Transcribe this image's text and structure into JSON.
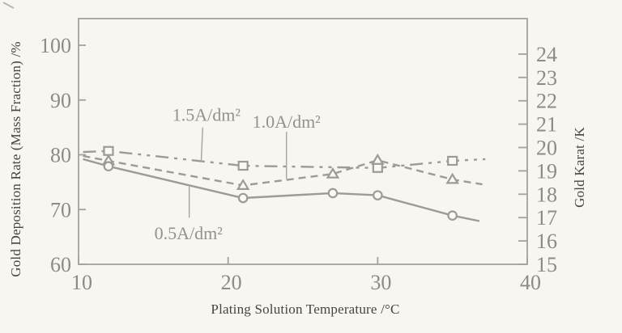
{
  "figure": {
    "xlabel": "Plating Solution Temperature /°C",
    "ylabel_left": "Gold Deposition Rate (Mass Fraction) /%",
    "ylabel_right": "Gold Karat /K"
  },
  "chart_data": {
    "type": "line",
    "title": "",
    "xlabel": "Plating Solution Temperature /°C",
    "ylabel_left": "Gold Deposition Rate (Mass Fraction) /%",
    "ylabel_right": "Gold Karat /K",
    "grid": false,
    "legend": "inline-labels-with-leader-lines",
    "x_axis": {
      "min": 10,
      "max": 40,
      "ticks": [
        10,
        20,
        30,
        40
      ]
    },
    "y_axis_left": {
      "min": 60,
      "max": 100,
      "ticks": [
        60,
        70,
        80,
        90,
        100
      ]
    },
    "y_axis_right": {
      "min": 15,
      "max": 24,
      "ticks": [
        15,
        16,
        17,
        18,
        19,
        20,
        21,
        22,
        23,
        24
      ]
    },
    "series": [
      {
        "name": "1.5A/dm²",
        "marker": "square",
        "line_style": "long-dash-dot",
        "x": [
          12,
          21,
          30,
          35
        ],
        "y": [
          80.7,
          78.0,
          77.6,
          78.9
        ],
        "line_extension_start": [
          10.3,
          80.5
        ],
        "line_extension_end": [
          37.2,
          79.2
        ],
        "label": {
          "text": "1.5A/dm²",
          "x": 18.55,
          "y": 87.2,
          "leader": [
            [
              18.3,
              85.0
            ],
            [
              18.2,
              78.8
            ]
          ]
        }
      },
      {
        "name": "1.0A/dm²",
        "marker": "triangle",
        "line_style": "dashed",
        "x": [
          12,
          21,
          27,
          30,
          35
        ],
        "y": [
          78.9,
          74.4,
          76.5,
          79.0,
          75.5
        ],
        "line_extension_start": [
          10.3,
          79.8
        ],
        "line_extension_end": [
          37.0,
          74.6
        ],
        "label": {
          "text": "1.0A/dm²",
          "x": 23.9,
          "y": 86.0,
          "leader": [
            [
              23.9,
              84.2
            ],
            [
              23.9,
              75.6
            ]
          ]
        }
      },
      {
        "name": "0.5A/dm²",
        "marker": "circle",
        "line_style": "solid",
        "x": [
          12,
          21,
          27,
          30,
          35
        ],
        "y": [
          77.9,
          72.1,
          73.0,
          72.6,
          68.9
        ],
        "line_extension_start": [
          10.3,
          79.2
        ],
        "line_extension_end": [
          36.8,
          67.9
        ],
        "label": {
          "text": "0.5A/dm²",
          "x": 17.35,
          "y": 65.6,
          "leader": [
            [
              17.4,
              68.5
            ],
            [
              17.4,
              74.2
            ]
          ]
        }
      }
    ],
    "colors": {
      "background": "#f8f6f1",
      "frame": "#a3a29c",
      "line": "#9c9b95",
      "marker_fill": "#faf9f5",
      "tick_label": "#8d8b84",
      "axis_title": "#474540",
      "series_label": "#94928b",
      "leader_line": "#a6a59f"
    }
  }
}
